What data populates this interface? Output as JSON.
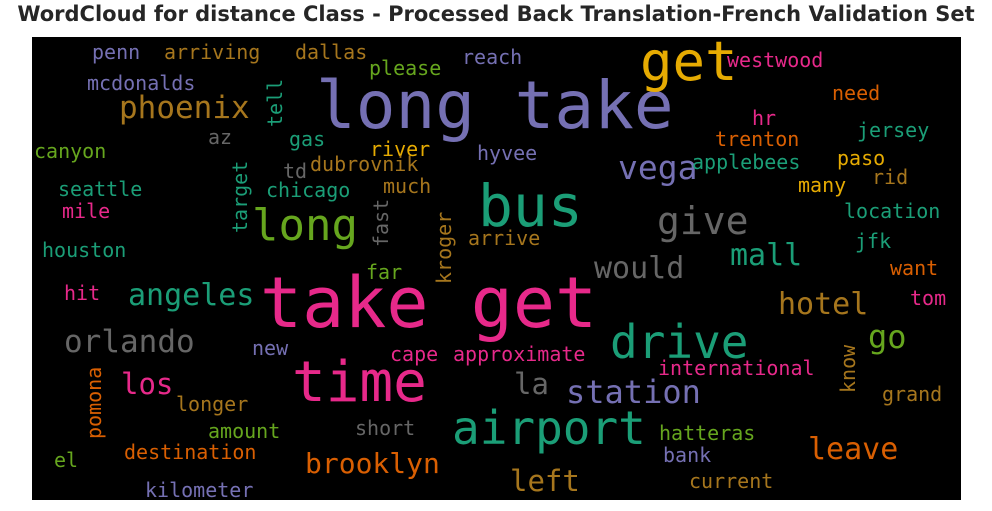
{
  "title": "WordCloud for distance Class - Processed Back Translation-French Validation Set",
  "words": [
    {
      "text": "long take",
      "color": "#7570b3"
    },
    {
      "text": "take get",
      "color": "#e7298a"
    },
    {
      "text": "get",
      "color": "#e6ab02"
    },
    {
      "text": "bus",
      "color": "#1b9e77"
    },
    {
      "text": "time",
      "color": "#e7298a"
    },
    {
      "text": "airport",
      "color": "#1b9e77"
    },
    {
      "text": "drive",
      "color": "#1b9e77"
    },
    {
      "text": "long",
      "color": "#66a61e"
    },
    {
      "text": "give",
      "color": "#666666"
    },
    {
      "text": "phoenix",
      "color": "#a6761d"
    },
    {
      "text": "vega",
      "color": "#7570b3"
    },
    {
      "text": "angeles",
      "color": "#1b9e77"
    },
    {
      "text": "orlando",
      "color": "#666666"
    },
    {
      "text": "would",
      "color": "#666666"
    },
    {
      "text": "mall",
      "color": "#1b9e77"
    },
    {
      "text": "hotel",
      "color": "#a6761d"
    },
    {
      "text": "go",
      "color": "#66a61e"
    },
    {
      "text": "station",
      "color": "#7570b3"
    },
    {
      "text": "los",
      "color": "#e7298a"
    },
    {
      "text": "la",
      "color": "#666666"
    },
    {
      "text": "brooklyn",
      "color": "#d95f02"
    },
    {
      "text": "left",
      "color": "#a6761d"
    },
    {
      "text": "leave",
      "color": "#d95f02"
    },
    {
      "text": "penn",
      "color": "#7570b3"
    },
    {
      "text": "arriving",
      "color": "#a6761d"
    },
    {
      "text": "dallas",
      "color": "#a6761d"
    },
    {
      "text": "please",
      "color": "#66a61e"
    },
    {
      "text": "reach",
      "color": "#7570b3"
    },
    {
      "text": "westwood",
      "color": "#e7298a"
    },
    {
      "text": "mcdonalds",
      "color": "#7570b3"
    },
    {
      "text": "tell",
      "color": "#1b9e77"
    },
    {
      "text": "need",
      "color": "#d95f02"
    },
    {
      "text": "hr",
      "color": "#e7298a"
    },
    {
      "text": "jersey",
      "color": "#1b9e77"
    },
    {
      "text": "az",
      "color": "#666666"
    },
    {
      "text": "gas",
      "color": "#1b9e77"
    },
    {
      "text": "trenton",
      "color": "#d95f02"
    },
    {
      "text": "canyon",
      "color": "#66a61e"
    },
    {
      "text": "river",
      "color": "#e6ab02"
    },
    {
      "text": "hyvee",
      "color": "#7570b3"
    },
    {
      "text": "paso",
      "color": "#e6ab02"
    },
    {
      "text": "dubrovnik",
      "color": "#a6761d"
    },
    {
      "text": "applebees",
      "color": "#1b9e77"
    },
    {
      "text": "td",
      "color": "#666666"
    },
    {
      "text": "rid",
      "color": "#a6761d"
    },
    {
      "text": "target",
      "color": "#1b9e77"
    },
    {
      "text": "much",
      "color": "#a6761d"
    },
    {
      "text": "many",
      "color": "#e6ab02"
    },
    {
      "text": "seattle",
      "color": "#1b9e77"
    },
    {
      "text": "chicago",
      "color": "#1b9e77"
    },
    {
      "text": "mile",
      "color": "#e7298a"
    },
    {
      "text": "fast",
      "color": "#666666"
    },
    {
      "text": "location",
      "color": "#1b9e77"
    },
    {
      "text": "kroger",
      "color": "#a6761d"
    },
    {
      "text": "arrive",
      "color": "#a6761d"
    },
    {
      "text": "houston",
      "color": "#1b9e77"
    },
    {
      "text": "jfk",
      "color": "#1b9e77"
    },
    {
      "text": "far",
      "color": "#66a61e"
    },
    {
      "text": "want",
      "color": "#d95f02"
    },
    {
      "text": "hit",
      "color": "#e7298a"
    },
    {
      "text": "tom",
      "color": "#e7298a"
    },
    {
      "text": "new",
      "color": "#7570b3"
    },
    {
      "text": "cape",
      "color": "#e7298a"
    },
    {
      "text": "approximate",
      "color": "#e7298a"
    },
    {
      "text": "international",
      "color": "#e7298a"
    },
    {
      "text": "know",
      "color": "#a6761d"
    },
    {
      "text": "pomona",
      "color": "#d95f02"
    },
    {
      "text": "grand",
      "color": "#a6761d"
    },
    {
      "text": "longer",
      "color": "#a6761d"
    },
    {
      "text": "short",
      "color": "#666666"
    },
    {
      "text": "amount",
      "color": "#66a61e"
    },
    {
      "text": "hatteras",
      "color": "#66a61e"
    },
    {
      "text": "destination",
      "color": "#d95f02"
    },
    {
      "text": "bank",
      "color": "#7570b3"
    },
    {
      "text": "el",
      "color": "#66a61e"
    },
    {
      "text": "current",
      "color": "#a6761d"
    },
    {
      "text": "kilometer",
      "color": "#7570b3"
    }
  ]
}
